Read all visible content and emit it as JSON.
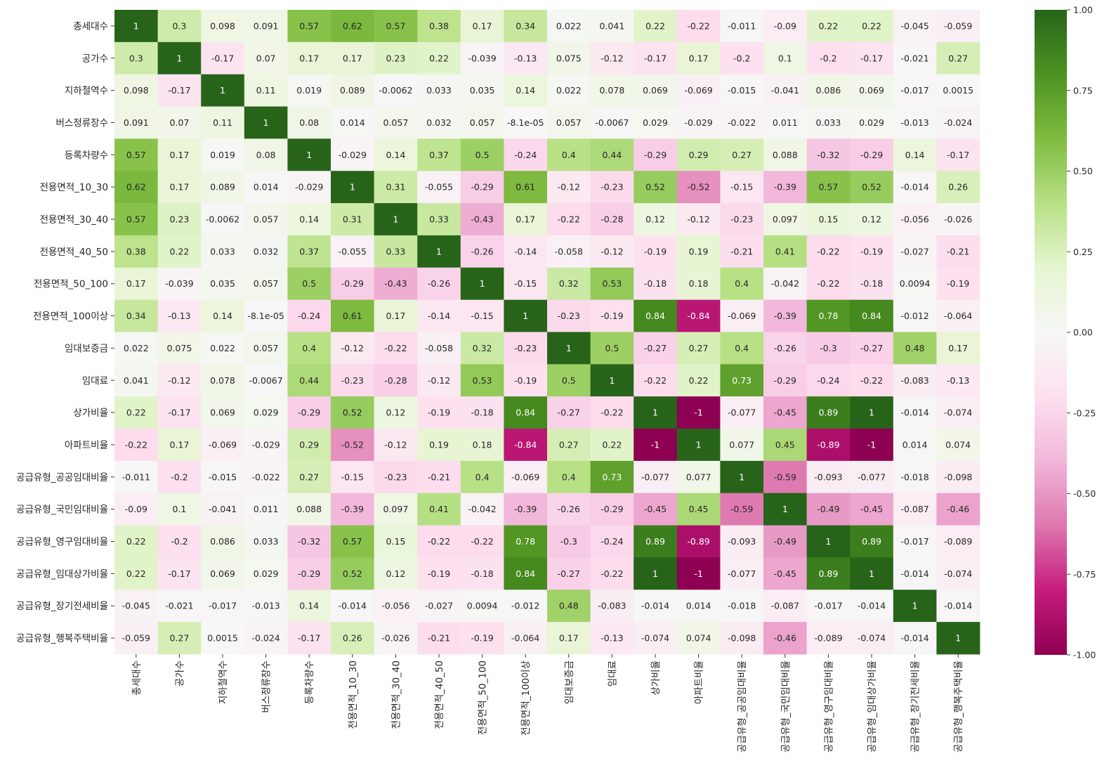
{
  "chart_data": {
    "type": "heatmap",
    "title": "",
    "xlabel": "",
    "ylabel": "",
    "colormap": "PiYG",
    "vmin": -1,
    "vmax": 1,
    "colorbar_ticks": [
      "1.00",
      "0.75",
      "0.50",
      "0.25",
      "0.00",
      "-0.25",
      "-0.50",
      "-0.75",
      "-1.00"
    ],
    "colorbar_values": [
      1,
      0.75,
      0.5,
      0.25,
      0,
      -0.25,
      -0.5,
      -0.75,
      -1
    ],
    "labels": [
      "총세대수",
      "공가수",
      "지하철역수",
      "버스정류장수",
      "등록차량수",
      "전용면적_10_30",
      "전용면적_30_40",
      "전용면적_40_50",
      "전용면적_50_100",
      "전용면적_100이상",
      "임대보증금",
      "임대료",
      "상가비율",
      "아파트비율",
      "공급유형_공공임대비율",
      "공급유형_국민임대비율",
      "공급유형_영구임대비율",
      "공급유형_임대상가비율",
      "공급유형_장기전세비율",
      "공급유형_행복주택비율"
    ],
    "values": [
      [
        1,
        0.3,
        0.098,
        0.091,
        0.57,
        0.62,
        0.57,
        0.38,
        0.17,
        0.34,
        0.022,
        0.041,
        0.22,
        -0.22,
        -0.011,
        -0.09,
        0.22,
        0.22,
        -0.045,
        -0.059
      ],
      [
        0.3,
        1,
        -0.17,
        0.07,
        0.17,
        0.17,
        0.23,
        0.22,
        -0.039,
        -0.13,
        0.075,
        -0.12,
        -0.17,
        0.17,
        -0.2,
        0.1,
        -0.2,
        -0.17,
        -0.021,
        0.27
      ],
      [
        0.098,
        -0.17,
        1,
        0.11,
        0.019,
        0.089,
        -0.0062,
        0.033,
        0.035,
        0.14,
        0.022,
        0.078,
        0.069,
        -0.069,
        -0.015,
        -0.041,
        0.086,
        0.069,
        -0.017,
        0.0015
      ],
      [
        0.091,
        0.07,
        0.11,
        1,
        0.08,
        0.014,
        0.057,
        0.032,
        0.057,
        -8.1e-05,
        0.057,
        -0.0067,
        0.029,
        -0.029,
        -0.022,
        0.011,
        0.033,
        0.029,
        -0.013,
        -0.024
      ],
      [
        0.57,
        0.17,
        0.019,
        0.08,
        1,
        -0.029,
        0.14,
        0.37,
        0.5,
        -0.24,
        0.4,
        0.44,
        -0.29,
        0.29,
        0.27,
        0.088,
        -0.32,
        -0.29,
        0.14,
        -0.17
      ],
      [
        0.62,
        0.17,
        0.089,
        0.014,
        -0.029,
        1,
        0.31,
        -0.055,
        -0.29,
        0.61,
        -0.12,
        -0.23,
        0.52,
        -0.52,
        -0.15,
        -0.39,
        0.57,
        0.52,
        -0.014,
        0.26
      ],
      [
        0.57,
        0.23,
        -0.0062,
        0.057,
        0.14,
        0.31,
        1,
        0.33,
        -0.43,
        0.17,
        -0.22,
        -0.28,
        0.12,
        -0.12,
        -0.23,
        0.097,
        0.15,
        0.12,
        -0.056,
        -0.026
      ],
      [
        0.38,
        0.22,
        0.033,
        0.032,
        0.37,
        -0.055,
        0.33,
        1,
        -0.26,
        -0.14,
        -0.058,
        -0.12,
        -0.19,
        0.19,
        -0.21,
        0.41,
        -0.22,
        -0.19,
        -0.027,
        -0.21
      ],
      [
        0.17,
        -0.039,
        0.035,
        0.057,
        0.5,
        -0.29,
        -0.43,
        -0.26,
        1,
        -0.15,
        0.32,
        0.53,
        -0.18,
        0.18,
        0.4,
        -0.042,
        -0.22,
        -0.18,
        0.0094,
        -0.19
      ],
      [
        0.34,
        -0.13,
        0.14,
        -8.1e-05,
        -0.24,
        0.61,
        0.17,
        -0.14,
        -0.15,
        1,
        -0.23,
        -0.19,
        0.84,
        -0.84,
        -0.069,
        -0.39,
        0.78,
        0.84,
        -0.012,
        -0.064
      ],
      [
        0.022,
        0.075,
        0.022,
        0.057,
        0.4,
        -0.12,
        -0.22,
        -0.058,
        0.32,
        -0.23,
        1,
        0.5,
        -0.27,
        0.27,
        0.4,
        -0.26,
        -0.3,
        -0.27,
        0.48,
        0.17
      ],
      [
        0.041,
        -0.12,
        0.078,
        -0.0067,
        0.44,
        -0.23,
        -0.28,
        -0.12,
        0.53,
        -0.19,
        0.5,
        1,
        -0.22,
        0.22,
        0.73,
        -0.29,
        -0.24,
        -0.22,
        -0.083,
        -0.13
      ],
      [
        0.22,
        -0.17,
        0.069,
        0.029,
        -0.29,
        0.52,
        0.12,
        -0.19,
        -0.18,
        0.84,
        -0.27,
        -0.22,
        1,
        -1,
        -0.077,
        -0.45,
        0.89,
        1,
        -0.014,
        -0.074
      ],
      [
        -0.22,
        0.17,
        -0.069,
        -0.029,
        0.29,
        -0.52,
        -0.12,
        0.19,
        0.18,
        -0.84,
        0.27,
        0.22,
        -1,
        1,
        0.077,
        0.45,
        -0.89,
        -1,
        0.014,
        0.074
      ],
      [
        -0.011,
        -0.2,
        -0.015,
        -0.022,
        0.27,
        -0.15,
        -0.23,
        -0.21,
        0.4,
        -0.069,
        0.4,
        0.73,
        -0.077,
        0.077,
        1,
        -0.59,
        -0.093,
        -0.077,
        -0.018,
        -0.098
      ],
      [
        -0.09,
        0.1,
        -0.041,
        0.011,
        0.088,
        -0.39,
        0.097,
        0.41,
        -0.042,
        -0.39,
        -0.26,
        -0.29,
        -0.45,
        0.45,
        -0.59,
        1,
        -0.49,
        -0.45,
        -0.087,
        -0.46
      ],
      [
        0.22,
        -0.2,
        0.086,
        0.033,
        -0.32,
        0.57,
        0.15,
        -0.22,
        -0.22,
        0.78,
        -0.3,
        -0.24,
        0.89,
        -0.89,
        -0.093,
        -0.49,
        1,
        0.89,
        -0.017,
        -0.089
      ],
      [
        0.22,
        -0.17,
        0.069,
        0.029,
        -0.29,
        0.52,
        0.12,
        -0.19,
        -0.18,
        0.84,
        -0.27,
        -0.22,
        1,
        -1,
        -0.077,
        -0.45,
        0.89,
        1,
        -0.014,
        -0.074
      ],
      [
        -0.045,
        -0.021,
        -0.017,
        -0.013,
        0.14,
        -0.014,
        -0.056,
        -0.027,
        0.0094,
        -0.012,
        0.48,
        -0.083,
        -0.014,
        0.014,
        -0.018,
        -0.087,
        -0.017,
        -0.014,
        1,
        -0.014
      ],
      [
        -0.059,
        0.27,
        0.0015,
        -0.024,
        -0.17,
        0.26,
        -0.026,
        -0.21,
        -0.19,
        -0.064,
        0.17,
        -0.13,
        -0.074,
        0.074,
        -0.098,
        -0.46,
        -0.089,
        -0.074,
        -0.014,
        1
      ]
    ]
  }
}
